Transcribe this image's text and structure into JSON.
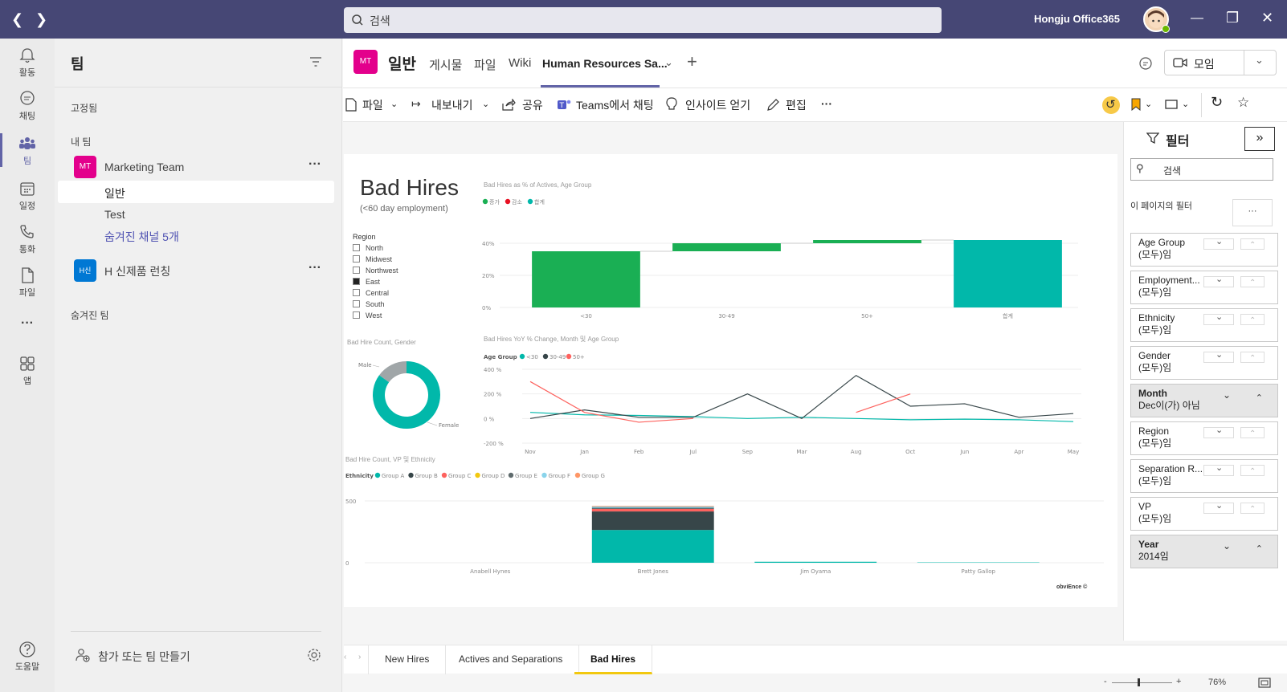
{
  "titlebar": {
    "search_placeholder": "검색",
    "more": "···",
    "user_name": "Hongju Office365"
  },
  "rail": {
    "items": [
      {
        "label": "활동"
      },
      {
        "label": "채팅"
      },
      {
        "label": "팀"
      },
      {
        "label": "일정"
      },
      {
        "label": "통화"
      },
      {
        "label": "파일"
      },
      {
        "label": "···"
      },
      {
        "label": "앱"
      },
      {
        "label": "도움말"
      }
    ]
  },
  "teams_pane": {
    "title": "팀",
    "pinned_label": "고정됨",
    "my_teams_label": "내 팀",
    "teams": [
      {
        "initials": "MT",
        "name": "Marketing Team",
        "color": "#e3008c",
        "more": "···",
        "channels": [
          "일반",
          "Test"
        ],
        "hidden_channels": "숨겨진 채널 5개"
      },
      {
        "initials": "H신",
        "name": "H 신제품 런칭",
        "color": "#0078d4",
        "more": "···"
      }
    ],
    "hidden_teams_label": "숨겨진 팀",
    "join_create": "참가 또는 팀 만들기"
  },
  "channel_header": {
    "team_initials": "MT",
    "channel_name": "일반",
    "tabs": [
      "게시물",
      "파일",
      "Wiki",
      "Human Resources Sa..."
    ],
    "active_tab": "Human Resources Sa...",
    "meet_label": "모임"
  },
  "toolbar": {
    "file": "파일",
    "export": "내보내기",
    "share": "공유",
    "teams_chat": "Teams에서 채팅",
    "insights": "인사이트 얻기",
    "edit": "편집",
    "more": "···"
  },
  "report": {
    "title": "Bad Hires",
    "subtitle": "(<60 day employment)",
    "region_slicer": {
      "title": "Region",
      "items": [
        "North",
        "Midwest",
        "Northwest",
        "East",
        "Central",
        "South",
        "West"
      ],
      "selected": "East"
    },
    "footer_brand": "obviEnce ©"
  },
  "chart_data": [
    {
      "type": "bar",
      "subtype": "waterfall",
      "title": "Bad Hires as % of Actives, Age Group",
      "legend": [
        "증가",
        "감소",
        "합계"
      ],
      "legend_colors": [
        "#1aaf54",
        "#e81123",
        "#01b8aa"
      ],
      "categories": [
        "<30",
        "30-49",
        "50+",
        "합계"
      ],
      "values": [
        35,
        5,
        2,
        42
      ],
      "ytick_labels": [
        "40%",
        "20%",
        "0%"
      ],
      "ylim": [
        0,
        45
      ]
    },
    {
      "type": "pie",
      "subtype": "donut",
      "title": "Bad Hire Count, Gender",
      "labels": [
        "Male",
        "Female"
      ],
      "values": [
        15,
        85
      ],
      "colors": [
        "#a0a6a8",
        "#01b8aa"
      ]
    },
    {
      "type": "line",
      "title": "Bad Hires YoY % Change, Month 및 Age Group",
      "legend_title": "Age Group",
      "x": [
        "Nov",
        "Jan",
        "Feb",
        "Jul",
        "Sep",
        "Mar",
        "Aug",
        "Oct",
        "Jun",
        "Apr",
        "May"
      ],
      "series": [
        {
          "name": "<30",
          "color": "#01b8aa",
          "values": [
            50,
            30,
            25,
            15,
            0,
            10,
            0,
            -10,
            -5,
            -10,
            -25
          ]
        },
        {
          "name": "30-49",
          "color": "#374649",
          "values": [
            0,
            70,
            10,
            10,
            200,
            0,
            350,
            100,
            120,
            10,
            40
          ]
        },
        {
          "name": "50+",
          "color": "#fd625e",
          "values": [
            300,
            50,
            -30,
            0,
            null,
            null,
            50,
            200,
            null,
            null,
            null
          ]
        }
      ],
      "ytick_labels": [
        "400 %",
        "200 %",
        "0 %",
        "-200 %"
      ],
      "ylim": [
        -200,
        400
      ]
    },
    {
      "type": "bar",
      "subtype": "stacked",
      "title": "Bad Hire Count, VP 및 Ethnicity",
      "legend_title": "Ethnicity",
      "categories": [
        "Anabell Hynes",
        "Brett Jones",
        "Jim Oyama",
        "Patty Gallop"
      ],
      "series": [
        {
          "name": "Group A",
          "color": "#01b8aa",
          "values": [
            0,
            265,
            8,
            3
          ]
        },
        {
          "name": "Group B",
          "color": "#374649",
          "values": [
            0,
            150,
            0,
            0
          ]
        },
        {
          "name": "Group C",
          "color": "#fd625e",
          "values": [
            0,
            20,
            0,
            0
          ]
        },
        {
          "name": "Group D",
          "color": "#f2c80f",
          "values": [
            0,
            0,
            0,
            0
          ]
        },
        {
          "name": "Group E",
          "color": "#5f6b6d",
          "values": [
            0,
            10,
            0,
            0
          ]
        },
        {
          "name": "Group F",
          "color": "#8ad4eb",
          "values": [
            0,
            10,
            0,
            0
          ]
        },
        {
          "name": "Group G",
          "color": "#fe9666",
          "values": [
            0,
            5,
            0,
            0
          ]
        }
      ],
      "ytick_labels": [
        "500",
        "0"
      ],
      "ylim": [
        0,
        500
      ]
    }
  ],
  "filters": {
    "title": "필터",
    "search_placeholder": "검색",
    "page_filters_label": "이 페이지의 필터",
    "more": "···",
    "cards": [
      {
        "name": "Age Group",
        "value": "(모두)임",
        "bold": false
      },
      {
        "name": "Employment...",
        "value": "(모두)임",
        "bold": false
      },
      {
        "name": "Ethnicity",
        "value": "(모두)임",
        "bold": false
      },
      {
        "name": "Gender",
        "value": "(모두)임",
        "bold": false
      },
      {
        "name": "Month",
        "value": "Dec이(가) 아님",
        "bold": true
      },
      {
        "name": "Region",
        "value": "(모두)임",
        "bold": false
      },
      {
        "name": "Separation R...",
        "value": "(모두)임",
        "bold": false
      },
      {
        "name": "VP",
        "value": "(모두)임",
        "bold": false
      },
      {
        "name": "Year",
        "value": "2014임",
        "bold": true
      }
    ]
  },
  "page_tabs": {
    "tabs": [
      "New Hires",
      "Actives and Separations",
      "Bad Hires"
    ],
    "active": "Bad Hires"
  },
  "status": {
    "zoom_minus": "-",
    "zoom_plus": "+",
    "zoom": "76%"
  },
  "colors": {
    "titlebar": "#464775",
    "accent": "#6264a7",
    "teal": "#01b8aa",
    "green": "#1aaf54",
    "red": "#e81123"
  }
}
